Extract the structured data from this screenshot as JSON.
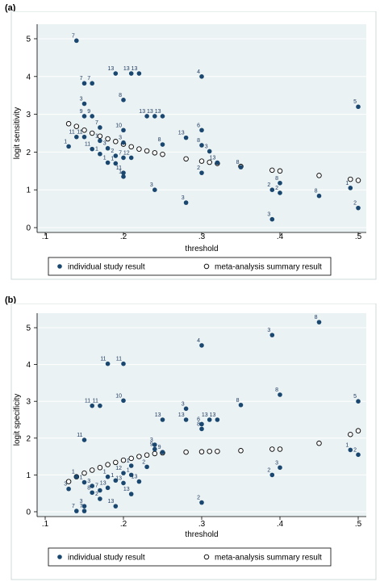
{
  "panels": [
    {
      "label": "(a)",
      "chart_data": {
        "type": "scatter",
        "xlabel": "threshold",
        "ylabel": "logit sensitivity",
        "xlim": [
          0.1,
          0.5
        ],
        "ylim": [
          0,
          5
        ],
        "xticks": [
          ".1",
          ".2",
          ".3",
          ".4",
          ".5"
        ],
        "yticks": [
          "0",
          "1",
          "2",
          "3",
          "4",
          "5"
        ],
        "grid": true,
        "legend_position": "bottom",
        "series": [
          {
            "name": "individual study result",
            "marker": "filled",
            "points": [
              {
                "x": 0.14,
                "y": 4.95,
                "label": "7"
              },
              {
                "x": 0.15,
                "y": 3.82,
                "label": "7"
              },
              {
                "x": 0.16,
                "y": 3.82,
                "label": "7"
              },
              {
                "x": 0.19,
                "y": 4.08,
                "label": "13"
              },
              {
                "x": 0.21,
                "y": 4.08,
                "label": "13"
              },
              {
                "x": 0.22,
                "y": 4.08,
                "label": "13"
              },
              {
                "x": 0.3,
                "y": 4.0,
                "label": "4"
              },
              {
                "x": 0.15,
                "y": 3.28,
                "label": "3"
              },
              {
                "x": 0.2,
                "y": 3.38,
                "label": "8"
              },
              {
                "x": 0.5,
                "y": 3.2,
                "label": "5"
              },
              {
                "x": 0.15,
                "y": 2.95,
                "label": "9"
              },
              {
                "x": 0.16,
                "y": 2.95,
                "label": "9"
              },
              {
                "x": 0.23,
                "y": 2.95,
                "label": "13"
              },
              {
                "x": 0.24,
                "y": 2.95,
                "label": "13"
              },
              {
                "x": 0.25,
                "y": 2.95,
                "label": "13"
              },
              {
                "x": 0.17,
                "y": 2.65,
                "label": "7"
              },
              {
                "x": 0.2,
                "y": 2.58,
                "label": "10"
              },
              {
                "x": 0.3,
                "y": 2.58,
                "label": "6"
              },
              {
                "x": 0.13,
                "y": 2.15,
                "label": "1"
              },
              {
                "x": 0.14,
                "y": 2.4,
                "label": "11"
              },
              {
                "x": 0.15,
                "y": 2.4,
                "label": "11"
              },
              {
                "x": 0.16,
                "y": 2.08,
                "label": "11"
              },
              {
                "x": 0.17,
                "y": 2.3,
                "label": "1"
              },
              {
                "x": 0.17,
                "y": 1.95,
                "label": "1"
              },
              {
                "x": 0.18,
                "y": 2.1,
                "label": "3"
              },
              {
                "x": 0.18,
                "y": 1.72,
                "label": "1"
              },
              {
                "x": 0.19,
                "y": 1.7,
                "label": "1"
              },
              {
                "x": 0.19,
                "y": 1.9,
                "label": "2"
              },
              {
                "x": 0.2,
                "y": 1.85,
                "label": "7"
              },
              {
                "x": 0.21,
                "y": 1.85,
                "label": "12"
              },
              {
                "x": 0.2,
                "y": 2.25,
                "label": "3"
              },
              {
                "x": 0.2,
                "y": 1.45,
                "label": "11"
              },
              {
                "x": 0.2,
                "y": 1.35,
                "label": "1"
              },
              {
                "x": 0.25,
                "y": 2.2,
                "label": "8"
              },
              {
                "x": 0.24,
                "y": 1.0,
                "label": "3"
              },
              {
                "x": 0.28,
                "y": 2.38,
                "label": "13"
              },
              {
                "x": 0.28,
                "y": 0.66,
                "label": "3"
              },
              {
                "x": 0.3,
                "y": 2.18,
                "label": "8"
              },
              {
                "x": 0.3,
                "y": 1.45,
                "label": "2"
              },
              {
                "x": 0.31,
                "y": 2.02,
                "label": "3"
              },
              {
                "x": 0.32,
                "y": 1.72,
                "label": "13"
              },
              {
                "x": 0.35,
                "y": 1.6,
                "label": "8"
              },
              {
                "x": 0.39,
                "y": 1.0,
                "label": "2"
              },
              {
                "x": 0.4,
                "y": 1.18,
                "label": "8"
              },
              {
                "x": 0.4,
                "y": 0.92,
                "label": "2"
              },
              {
                "x": 0.39,
                "y": 0.22,
                "label": "3"
              },
              {
                "x": 0.45,
                "y": 0.84,
                "label": "8"
              },
              {
                "x": 0.49,
                "y": 1.05,
                "label": "1"
              },
              {
                "x": 0.5,
                "y": 0.52,
                "label": "2"
              }
            ]
          },
          {
            "name": "meta-analysis summary result",
            "marker": "hollow",
            "points": [
              {
                "x": 0.13,
                "y": 2.75
              },
              {
                "x": 0.14,
                "y": 2.68
              },
              {
                "x": 0.15,
                "y": 2.58
              },
              {
                "x": 0.16,
                "y": 2.5
              },
              {
                "x": 0.17,
                "y": 2.42
              },
              {
                "x": 0.18,
                "y": 2.35
              },
              {
                "x": 0.19,
                "y": 2.28
              },
              {
                "x": 0.2,
                "y": 2.21
              },
              {
                "x": 0.21,
                "y": 2.14
              },
              {
                "x": 0.22,
                "y": 2.08
              },
              {
                "x": 0.23,
                "y": 2.03
              },
              {
                "x": 0.24,
                "y": 1.98
              },
              {
                "x": 0.25,
                "y": 1.94
              },
              {
                "x": 0.28,
                "y": 1.82
              },
              {
                "x": 0.3,
                "y": 1.76
              },
              {
                "x": 0.31,
                "y": 1.73
              },
              {
                "x": 0.32,
                "y": 1.7
              },
              {
                "x": 0.35,
                "y": 1.62
              },
              {
                "x": 0.39,
                "y": 1.52
              },
              {
                "x": 0.4,
                "y": 1.5
              },
              {
                "x": 0.45,
                "y": 1.38
              },
              {
                "x": 0.49,
                "y": 1.28
              },
              {
                "x": 0.5,
                "y": 1.25
              }
            ]
          }
        ]
      }
    },
    {
      "label": "(b)",
      "chart_data": {
        "type": "scatter",
        "xlabel": "threshold",
        "ylabel": "logit specificity",
        "xlim": [
          0.1,
          0.5
        ],
        "ylim": [
          0,
          5
        ],
        "xticks": [
          ".1",
          ".2",
          ".3",
          ".4",
          ".5"
        ],
        "yticks": [
          "0",
          "1",
          "2",
          "3",
          "4",
          "5"
        ],
        "grid": true,
        "legend_position": "bottom",
        "series": [
          {
            "name": "individual study result",
            "marker": "filled",
            "points": [
              {
                "x": 0.45,
                "y": 5.15,
                "label": "8"
              },
              {
                "x": 0.39,
                "y": 4.8,
                "label": "3"
              },
              {
                "x": 0.3,
                "y": 4.52,
                "label": "4"
              },
              {
                "x": 0.18,
                "y": 4.02,
                "label": "11"
              },
              {
                "x": 0.2,
                "y": 4.02,
                "label": "11"
              },
              {
                "x": 0.4,
                "y": 3.18,
                "label": "8"
              },
              {
                "x": 0.2,
                "y": 3.02,
                "label": "10"
              },
              {
                "x": 0.5,
                "y": 3.0,
                "label": "5"
              },
              {
                "x": 0.16,
                "y": 2.88,
                "label": "11"
              },
              {
                "x": 0.17,
                "y": 2.88,
                "label": "11"
              },
              {
                "x": 0.35,
                "y": 2.9,
                "label": "8"
              },
              {
                "x": 0.28,
                "y": 2.8,
                "label": "3"
              },
              {
                "x": 0.25,
                "y": 2.5,
                "label": "13"
              },
              {
                "x": 0.28,
                "y": 2.5,
                "label": "13"
              },
              {
                "x": 0.3,
                "y": 2.38,
                "label": "6"
              },
              {
                "x": 0.3,
                "y": 2.25,
                "label": "8"
              },
              {
                "x": 0.31,
                "y": 2.5,
                "label": "13"
              },
              {
                "x": 0.32,
                "y": 2.5,
                "label": "13"
              },
              {
                "x": 0.15,
                "y": 1.95,
                "label": "11"
              },
              {
                "x": 0.24,
                "y": 1.82,
                "label": "3"
              },
              {
                "x": 0.24,
                "y": 1.7,
                "label": "9"
              },
              {
                "x": 0.25,
                "y": 1.62,
                "label": "9"
              },
              {
                "x": 0.13,
                "y": 0.62,
                "label": "3"
              },
              {
                "x": 0.14,
                "y": 0.95,
                "label": "1"
              },
              {
                "x": 0.15,
                "y": 0.8,
                "label": "1"
              },
              {
                "x": 0.16,
                "y": 0.7,
                "label": "3"
              },
              {
                "x": 0.16,
                "y": 0.52,
                "label": "8"
              },
              {
                "x": 0.17,
                "y": 0.58,
                "label": "7"
              },
              {
                "x": 0.17,
                "y": 0.35,
                "label": "2"
              },
              {
                "x": 0.18,
                "y": 0.95,
                "label": "1"
              },
              {
                "x": 0.18,
                "y": 0.65,
                "label": "13"
              },
              {
                "x": 0.19,
                "y": 0.85,
                "label": "1"
              },
              {
                "x": 0.2,
                "y": 1.05,
                "label": "12"
              },
              {
                "x": 0.2,
                "y": 0.78,
                "label": "13"
              },
              {
                "x": 0.21,
                "y": 1.25,
                "label": "1"
              },
              {
                "x": 0.21,
                "y": 1.0,
                "label": "1"
              },
              {
                "x": 0.21,
                "y": 0.48,
                "label": "13"
              },
              {
                "x": 0.22,
                "y": 0.82,
                "label": "13"
              },
              {
                "x": 0.23,
                "y": 1.22,
                "label": "2"
              },
              {
                "x": 0.14,
                "y": 0.02,
                "label": "7"
              },
              {
                "x": 0.15,
                "y": 0.15,
                "label": "3"
              },
              {
                "x": 0.15,
                "y": 0.02,
                "label": "7"
              },
              {
                "x": 0.19,
                "y": 0.15,
                "label": "13"
              },
              {
                "x": 0.3,
                "y": 0.25,
                "label": "2"
              },
              {
                "x": 0.39,
                "y": 1.0,
                "label": "2"
              },
              {
                "x": 0.4,
                "y": 1.2,
                "label": "3"
              },
              {
                "x": 0.49,
                "y": 1.68,
                "label": "1"
              },
              {
                "x": 0.5,
                "y": 1.55,
                "label": "2"
              }
            ]
          },
          {
            "name": "meta-analysis summary result",
            "marker": "hollow",
            "points": [
              {
                "x": 0.13,
                "y": 0.82
              },
              {
                "x": 0.14,
                "y": 0.95
              },
              {
                "x": 0.15,
                "y": 1.05
              },
              {
                "x": 0.16,
                "y": 1.13
              },
              {
                "x": 0.17,
                "y": 1.2
              },
              {
                "x": 0.18,
                "y": 1.28
              },
              {
                "x": 0.19,
                "y": 1.34
              },
              {
                "x": 0.2,
                "y": 1.4
              },
              {
                "x": 0.21,
                "y": 1.45
              },
              {
                "x": 0.22,
                "y": 1.5
              },
              {
                "x": 0.23,
                "y": 1.54
              },
              {
                "x": 0.24,
                "y": 1.58
              },
              {
                "x": 0.25,
                "y": 1.6
              },
              {
                "x": 0.28,
                "y": 1.62
              },
              {
                "x": 0.3,
                "y": 1.63
              },
              {
                "x": 0.31,
                "y": 1.64
              },
              {
                "x": 0.32,
                "y": 1.64
              },
              {
                "x": 0.35,
                "y": 1.66
              },
              {
                "x": 0.39,
                "y": 1.7
              },
              {
                "x": 0.4,
                "y": 1.7
              },
              {
                "x": 0.45,
                "y": 1.86
              },
              {
                "x": 0.49,
                "y": 2.1
              },
              {
                "x": 0.5,
                "y": 2.2
              }
            ]
          }
        ]
      }
    }
  ],
  "colors": {
    "plot_bg": "#eaf2f3",
    "outer_bg": "#ffffff",
    "grid": "#ffffff",
    "filled_marker": "#1a476f",
    "hollow_marker_stroke": "#000000",
    "label_color": "#1f3a60"
  }
}
